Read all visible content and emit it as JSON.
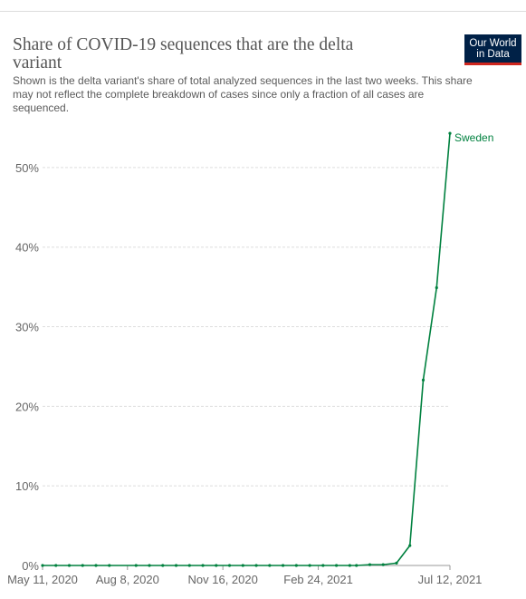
{
  "chart_data": {
    "type": "line",
    "title": [
      "Share of COVID-19 sequences that are the delta",
      "variant"
    ],
    "subtitle": [
      "Shown is the delta variant's share of total analyzed sequences in the last two weeks. This share",
      "may not reflect the complete breakdown of cases since only a fraction of all cases are",
      "sequenced."
    ],
    "logo": [
      "Our World",
      "in Data"
    ],
    "x": [
      "2020-05-11",
      "2020-05-25",
      "2020-06-08",
      "2020-06-22",
      "2020-07-06",
      "2020-07-20",
      "2020-08-17",
      "2020-08-31",
      "2020-09-14",
      "2020-09-28",
      "2020-10-12",
      "2020-10-26",
      "2020-11-09",
      "2020-11-23",
      "2020-12-07",
      "2020-12-21",
      "2021-01-04",
      "2021-01-18",
      "2021-02-01",
      "2021-02-15",
      "2021-03-01",
      "2021-03-15",
      "2021-03-29",
      "2021-04-05",
      "2021-04-19",
      "2021-05-03",
      "2021-05-17",
      "2021-05-31",
      "2021-06-14",
      "2021-06-28",
      "2021-07-12"
    ],
    "series": [
      {
        "name": "Sweden",
        "color": "#00813f",
        "values": [
          0,
          0,
          0,
          0,
          0,
          0,
          0,
          0,
          0,
          0,
          0,
          0,
          0,
          0,
          0,
          0,
          0,
          0,
          0,
          0,
          0,
          0,
          0,
          0,
          0.1,
          0.1,
          0.3,
          2.5,
          23.3,
          34.9,
          54.3
        ]
      }
    ],
    "xlim": [
      "2020-05-11",
      "2021-07-12"
    ],
    "xticks": [
      {
        "value": "2020-05-11",
        "label": "May 11, 2020"
      },
      {
        "value": "2020-08-08",
        "label": "Aug 8, 2020"
      },
      {
        "value": "2020-11-16",
        "label": "Nov 16, 2020"
      },
      {
        "value": "2021-02-24",
        "label": "Feb 24, 2021"
      },
      {
        "value": "2021-07-12",
        "label": "Jul 12, 2021"
      }
    ],
    "ylim": [
      0,
      55
    ],
    "yticks": [
      {
        "value": 0,
        "label": "0%"
      },
      {
        "value": 10,
        "label": "10%"
      },
      {
        "value": 20,
        "label": "20%"
      },
      {
        "value": 30,
        "label": "30%"
      },
      {
        "value": 40,
        "label": "40%"
      },
      {
        "value": 50,
        "label": "50%"
      }
    ],
    "grid": true
  }
}
